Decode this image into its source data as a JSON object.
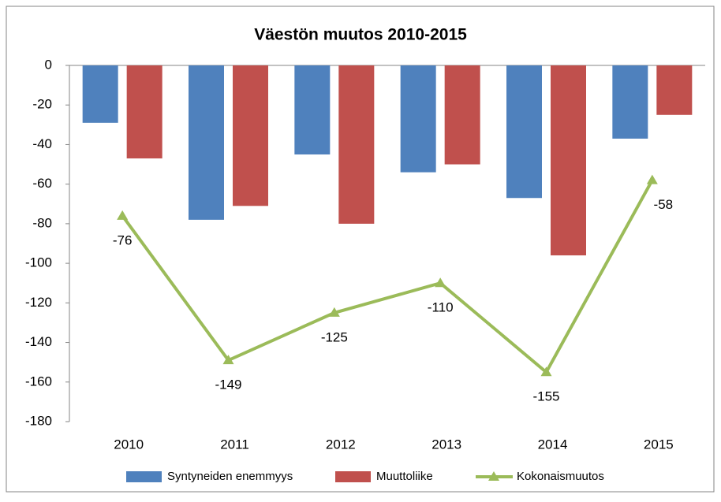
{
  "chart_data": {
    "type": "bar",
    "title": "Väestön muutos 2010-2015",
    "categories": [
      "2010",
      "2011",
      "2012",
      "2013",
      "2014",
      "2015"
    ],
    "series": [
      {
        "name": "Syntyneiden enemmyys",
        "color": "#4f81bd",
        "type": "bar",
        "values": [
          -29,
          -78,
          -45,
          -54,
          -67,
          -37
        ]
      },
      {
        "name": "Muuttoliike",
        "color": "#c0504d",
        "type": "bar",
        "values": [
          -47,
          -71,
          -80,
          -50,
          -96,
          -25
        ]
      },
      {
        "name": "Kokonaismuutos",
        "color": "#9bbb59",
        "type": "line",
        "values": [
          -76,
          -149,
          -125,
          -110,
          -155,
          -58
        ]
      }
    ],
    "ylim": [
      -180,
      0
    ],
    "yticks": [
      0,
      -20,
      -40,
      -60,
      -80,
      -100,
      -120,
      -140,
      -160,
      -180
    ],
    "grid": false,
    "legend": "bottom"
  }
}
